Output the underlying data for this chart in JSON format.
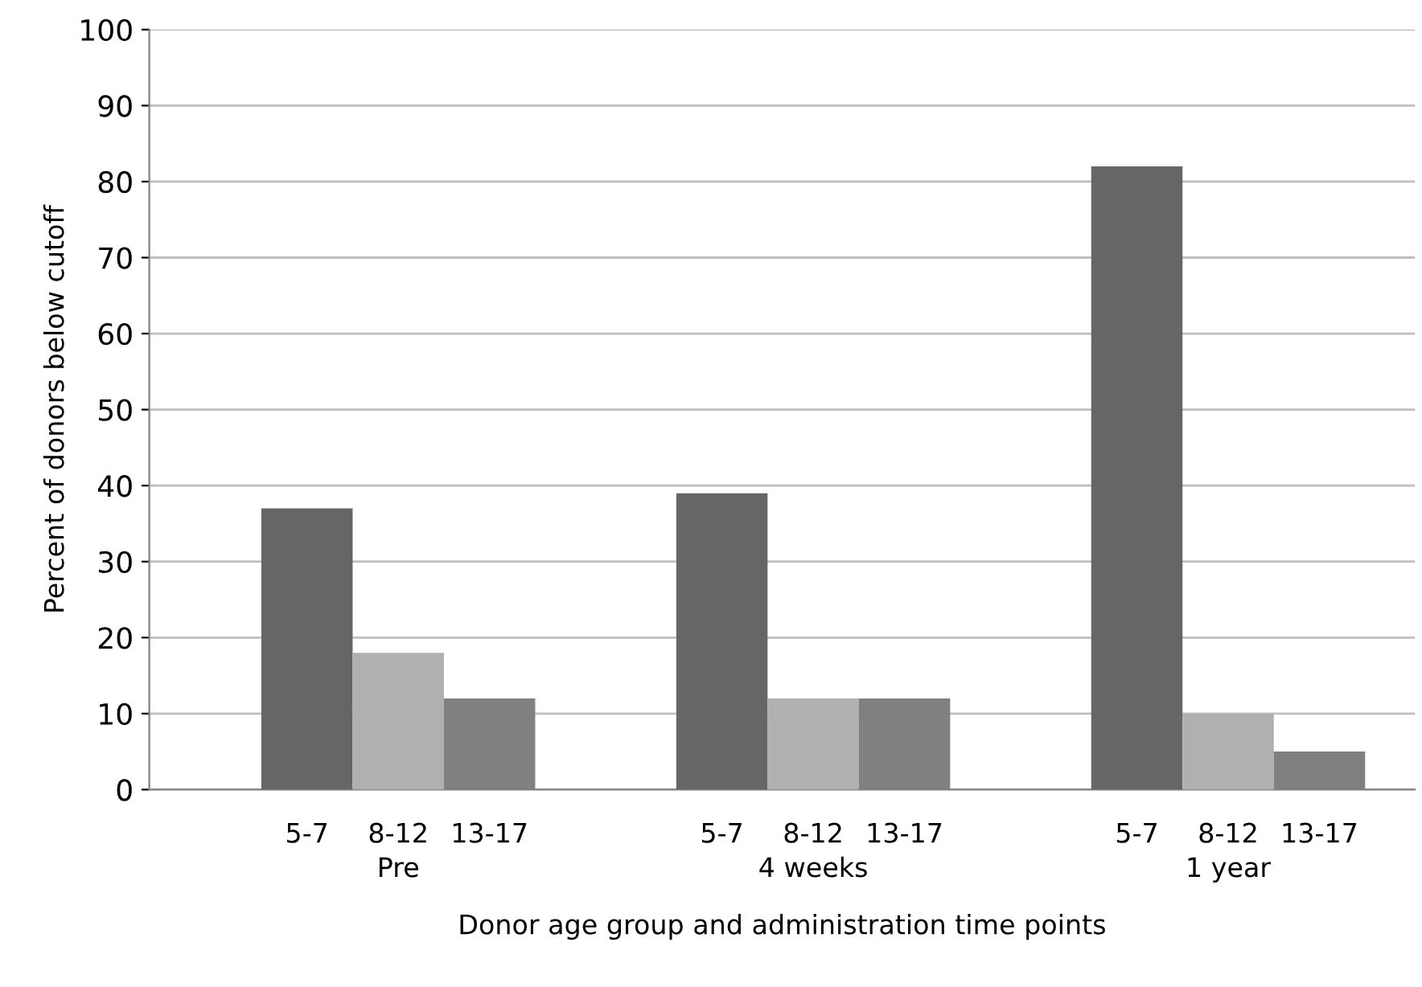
{
  "chart_data": {
    "type": "bar",
    "xlabel": "Donor age group and administration time points",
    "ylabel": "Percent of donors below cutoff",
    "categories": [
      "Pre",
      "4 weeks",
      "1 year"
    ],
    "series": [
      {
        "name": "5-7",
        "color": "#666666",
        "values": [
          37,
          39,
          82
        ]
      },
      {
        "name": "8-12",
        "color": "#b0b0b0",
        "values": [
          18,
          12,
          10
        ]
      },
      {
        "name": "13-17",
        "color": "#808080",
        "values": [
          12,
          12,
          5
        ]
      }
    ],
    "ylim": [
      0,
      100
    ],
    "yticks": [
      0,
      10,
      20,
      30,
      40,
      50,
      60,
      70,
      80,
      90,
      100
    ],
    "grid": "y",
    "legend": false
  }
}
